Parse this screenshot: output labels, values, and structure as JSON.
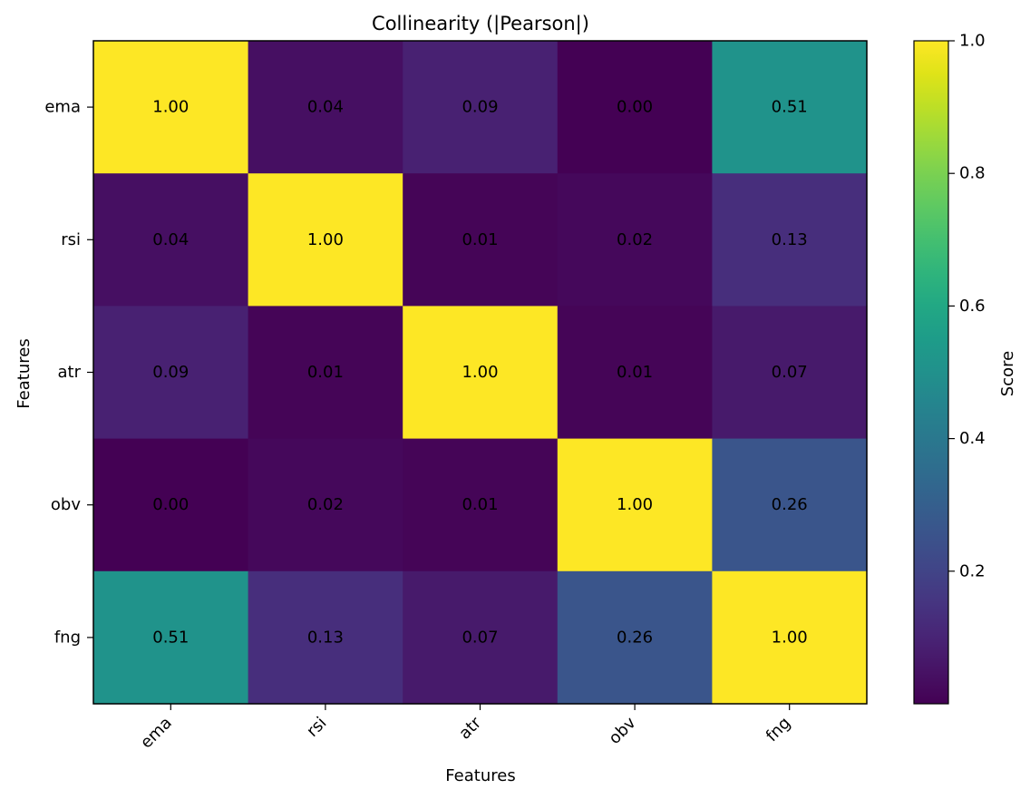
{
  "chart_data": {
    "type": "heatmap",
    "title": "Collinearity (|Pearson|)",
    "xlabel": "Features",
    "ylabel": "Features",
    "x_categories": [
      "ema",
      "rsi",
      "atr",
      "obv",
      "fng"
    ],
    "y_categories": [
      "ema",
      "rsi",
      "atr",
      "obv",
      "fng"
    ],
    "values": [
      [
        1.0,
        0.04,
        0.09,
        0.0,
        0.51
      ],
      [
        0.04,
        1.0,
        0.01,
        0.02,
        0.13
      ],
      [
        0.09,
        0.01,
        1.0,
        0.01,
        0.07
      ],
      [
        0.0,
        0.02,
        0.01,
        1.0,
        0.26
      ],
      [
        0.51,
        0.13,
        0.07,
        0.26,
        1.0
      ]
    ],
    "labels": [
      [
        "1.00",
        "0.04",
        "0.09",
        "0.00",
        "0.51"
      ],
      [
        "0.04",
        "1.00",
        "0.01",
        "0.02",
        "0.13"
      ],
      [
        "0.09",
        "0.01",
        "1.00",
        "0.01",
        "0.07"
      ],
      [
        "0.00",
        "0.02",
        "0.01",
        "1.00",
        "0.26"
      ],
      [
        "0.51",
        "0.13",
        "0.07",
        "0.26",
        "1.00"
      ]
    ],
    "colormap": "viridis",
    "colorbar": {
      "label": "Score",
      "range": [
        0.0,
        1.0
      ],
      "ticks": [
        0.2,
        0.4,
        0.6,
        0.8,
        1.0
      ],
      "tick_labels": [
        "0.2",
        "0.4",
        "0.6",
        "0.8",
        "1.0"
      ]
    },
    "grid": false
  }
}
